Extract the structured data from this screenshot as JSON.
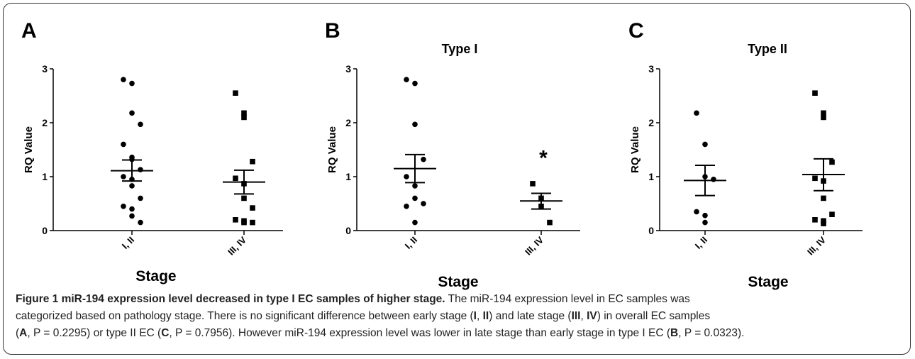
{
  "chart_data": [
    {
      "type": "scatter",
      "panel_letter": "A",
      "title": "",
      "ylabel": "RQ Value",
      "xlabel": "Stage",
      "ylim": [
        0,
        3
      ],
      "yticks": [
        "0",
        "1",
        "2",
        "3"
      ],
      "categories": [
        "I, II",
        "III, IV"
      ],
      "series": [
        {
          "marker": "circle",
          "values": [
            2.8,
            2.73,
            2.18,
            1.97,
            1.6,
            1.36,
            1.32,
            1.13,
            1.0,
            0.95,
            0.83,
            0.6,
            0.45,
            0.4,
            0.27,
            0.15
          ],
          "mean": 1.11,
          "sem_low": 0.92,
          "sem_high": 1.31
        },
        {
          "marker": "square",
          "values": [
            2.55,
            2.18,
            2.1,
            1.28,
            0.97,
            0.87,
            0.6,
            0.42,
            0.2,
            0.18,
            0.15,
            0.15
          ],
          "mean": 0.9,
          "sem_low": 0.68,
          "sem_high": 1.12
        }
      ]
    },
    {
      "type": "scatter",
      "panel_letter": "B",
      "title": "Type I",
      "ylabel": "RQ Value",
      "xlabel": "Stage",
      "ylim": [
        0,
        3
      ],
      "yticks": [
        "0",
        "1",
        "2",
        "3"
      ],
      "categories": [
        "I, II",
        "III, IV"
      ],
      "annotation": "*",
      "series": [
        {
          "marker": "circle",
          "values": [
            2.8,
            2.73,
            1.97,
            1.32,
            1.0,
            0.83,
            0.6,
            0.5,
            0.45,
            0.15
          ],
          "mean": 1.15,
          "sem_low": 0.89,
          "sem_high": 1.41
        },
        {
          "marker": "square",
          "values": [
            0.87,
            0.6,
            0.45,
            0.15
          ],
          "mean": 0.55,
          "sem_low": 0.4,
          "sem_high": 0.69
        }
      ]
    },
    {
      "type": "scatter",
      "panel_letter": "C",
      "title": "Type II",
      "ylabel": "RQ Value",
      "xlabel": "Stage",
      "ylim": [
        0,
        3
      ],
      "yticks": [
        "0",
        "1",
        "2",
        "3"
      ],
      "categories": [
        "I, II",
        "III, IV"
      ],
      "series": [
        {
          "marker": "circle",
          "values": [
            2.18,
            1.6,
            1.0,
            0.95,
            0.35,
            0.28,
            0.15
          ],
          "mean": 0.93,
          "sem_low": 0.65,
          "sem_high": 1.21
        },
        {
          "marker": "square",
          "values": [
            2.55,
            2.18,
            2.1,
            1.27,
            0.97,
            0.92,
            0.6,
            0.3,
            0.2,
            0.18,
            0.13
          ],
          "mean": 1.04,
          "sem_low": 0.74,
          "sem_high": 1.33
        }
      ]
    }
  ],
  "caption": {
    "title": "Figure 1 miR-194 expression level decreased in type I EC samples of higher stage.",
    "line1": "The miR-194 expression level in EC samples was",
    "line2": "categorized based on pathology stage. There is no significant difference between early stage (",
    "b1": "I",
    "sep1": ", ",
    "b2": "II",
    "line2b": ") and late stage (",
    "b3": "III",
    "sep2": ", ",
    "b4": "IV",
    "line2c": ") in overall EC samples",
    "line3a": "(",
    "bA": "A",
    "line3b": ", P = 0.2295) or type II EC (",
    "bC": "C",
    "line3c": ", P = 0.7956). However miR-194 expression level was lower in late stage than early stage in type I EC (",
    "bB": "B",
    "line3d": ", P = 0.0323)."
  }
}
